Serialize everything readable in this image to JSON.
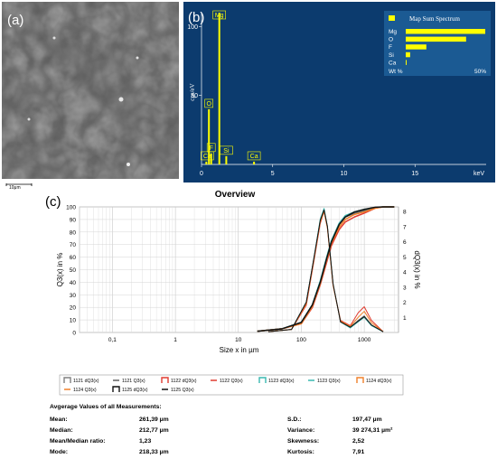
{
  "panels": {
    "a": {
      "label": "(a)",
      "scale_label": "10μm"
    },
    "b": {
      "label": "(b)"
    },
    "c": {
      "label": "(c)"
    }
  },
  "chart_data": [
    {
      "type": "bar",
      "panel": "b",
      "title": "",
      "ylabel": "cps/eV",
      "xlabel": "keV",
      "xlim": [
        0,
        20
      ],
      "ylim": [
        0,
        110
      ],
      "x_ticks": [
        "0",
        "5",
        "10",
        "15"
      ],
      "y_ticks": [
        "100",
        "50"
      ],
      "peaks": [
        {
          "label": "Ca",
          "x": 0.34,
          "y": 2
        },
        {
          "label": "F",
          "x": 0.68,
          "y": 8
        },
        {
          "label": "O",
          "x": 0.52,
          "y": 40
        },
        {
          "label": "Mg",
          "x": 1.25,
          "y": 110
        },
        {
          "label": "Si",
          "x": 1.74,
          "y": 6
        },
        {
          "label": "Ca",
          "x": 3.69,
          "y": 2
        }
      ],
      "inset": {
        "title": "Map Sum Spectrum",
        "categories": [
          "Mg",
          "O",
          "F",
          "Si",
          "Ca"
        ],
        "values": [
          54,
          41,
          14,
          3,
          0.5
        ],
        "x_label": "Wt %",
        "x_max_label": "50%"
      },
      "colors": {
        "background": "#0c3b6e",
        "bars": "#ffff00",
        "text": "#ffffff"
      }
    },
    {
      "type": "line",
      "panel": "c",
      "title": "Overview",
      "xlabel": "Size x in µm",
      "ylabel": "Q3(x) in %",
      "y2label": "dQ3(x) in %",
      "x_scale": "log",
      "xlim": [
        0.03,
        3500
      ],
      "ylim": [
        0,
        100
      ],
      "y2lim": [
        0,
        8.3
      ],
      "x_ticks": [
        "0,1",
        "1",
        "10",
        "100",
        "1000"
      ],
      "y_ticks": [
        "0",
        "10",
        "20",
        "30",
        "40",
        "50",
        "60",
        "70",
        "80",
        "90",
        "100"
      ],
      "y2_ticks": [
        "1",
        "2",
        "3",
        "4",
        "5",
        "6",
        "7",
        "8"
      ],
      "series": [
        {
          "name": "1121 dQ3(x)",
          "color": "#808080",
          "axis": "y2",
          "x": [
            30,
            70,
            120,
            160,
            200,
            230,
            260,
            320,
            420,
            600,
            800,
            1000,
            1300,
            2000
          ],
          "y": [
            0.05,
            0.2,
            2.0,
            5.0,
            7.4,
            8.1,
            7.0,
            3.2,
            0.7,
            0.35,
            0.8,
            1.1,
            0.5,
            0.05
          ]
        },
        {
          "name": "1121 Q3(x)",
          "color": "#606060",
          "axis": "y",
          "x": [
            20,
            50,
            100,
            150,
            200,
            250,
            300,
            400,
            500,
            700,
            1000,
            1500,
            2000,
            3000
          ],
          "y": [
            1,
            3,
            8,
            22,
            40,
            58,
            72,
            86,
            92,
            95,
            97,
            99.5,
            100,
            100
          ]
        },
        {
          "name": "1122 dQ3(x)",
          "color": "#e03c31",
          "axis": "y2",
          "x": [
            30,
            70,
            120,
            160,
            200,
            230,
            260,
            320,
            420,
            600,
            800,
            1000,
            1300,
            2000
          ],
          "y": [
            0.05,
            0.2,
            1.8,
            4.8,
            7.2,
            8.0,
            6.9,
            3.1,
            0.8,
            0.45,
            1.3,
            1.7,
            0.8,
            0.05
          ]
        },
        {
          "name": "1122 Q3(x)",
          "color": "#e03c31",
          "axis": "y",
          "x": [
            20,
            50,
            100,
            150,
            200,
            250,
            300,
            400,
            500,
            700,
            1000,
            1500,
            2000,
            3000
          ],
          "y": [
            1,
            3,
            7,
            20,
            38,
            55,
            69,
            82,
            88,
            92,
            95,
            99,
            100,
            100
          ]
        },
        {
          "name": "1123 dQ3(x)",
          "color": "#39b8b0",
          "axis": "y2",
          "x": [
            30,
            70,
            120,
            160,
            200,
            230,
            260,
            320,
            420,
            600,
            800,
            1000,
            1300,
            2000
          ],
          "y": [
            0.05,
            0.2,
            2.0,
            5.0,
            7.5,
            8.2,
            7.0,
            3.2,
            0.7,
            0.3,
            0.7,
            1.0,
            0.45,
            0.05
          ]
        },
        {
          "name": "1123 Q3(x)",
          "color": "#39b8b0",
          "axis": "y",
          "x": [
            20,
            50,
            100,
            150,
            200,
            250,
            300,
            400,
            500,
            700,
            1000,
            1500,
            2000,
            3000
          ],
          "y": [
            1,
            3,
            8,
            22,
            41,
            59,
            73,
            87,
            93,
            96,
            98,
            99.5,
            100,
            100
          ]
        },
        {
          "name": "1124 dQ3(x)",
          "color": "#f0802a",
          "axis": "y2",
          "x": [
            30,
            70,
            120,
            160,
            200,
            230,
            260,
            320,
            420,
            600,
            800,
            1000,
            1300,
            2000
          ],
          "y": [
            0.05,
            0.2,
            1.9,
            4.9,
            7.3,
            8.0,
            6.9,
            3.1,
            0.75,
            0.4,
            1.0,
            1.4,
            0.65,
            0.05
          ]
        },
        {
          "name": "1124 Q3(x)",
          "color": "#f0802a",
          "axis": "y",
          "x": [
            20,
            50,
            100,
            150,
            200,
            250,
            300,
            400,
            500,
            700,
            1000,
            1500,
            2000,
            3000
          ],
          "y": [
            1,
            3,
            7,
            21,
            39,
            57,
            71,
            84,
            90,
            94,
            96,
            99,
            100,
            100
          ]
        },
        {
          "name": "1125 dQ3(x)",
          "color": "#111111",
          "axis": "y2",
          "x": [
            30,
            70,
            120,
            160,
            200,
            230,
            260,
            320,
            420,
            600,
            800,
            1000,
            1300,
            2000
          ],
          "y": [
            0.05,
            0.2,
            2.0,
            5.0,
            7.4,
            8.1,
            7.0,
            3.2,
            0.7,
            0.35,
            0.75,
            1.05,
            0.5,
            0.05
          ]
        },
        {
          "name": "1125 Q3(x)",
          "color": "#111111",
          "axis": "y",
          "x": [
            20,
            50,
            100,
            150,
            200,
            250,
            300,
            400,
            500,
            700,
            1000,
            1500,
            2000,
            3000
          ],
          "y": [
            1,
            3,
            8,
            22,
            40,
            58,
            72,
            86,
            92,
            96,
            98,
            99.7,
            100,
            100
          ]
        }
      ]
    }
  ],
  "stats": {
    "heading": "Avgerage Values of all Measurements:",
    "left": [
      {
        "label": "Mean:",
        "value": "261,39 µm"
      },
      {
        "label": "Median:",
        "value": "212,77 µm"
      },
      {
        "label": "Mean/Median ratio:",
        "value": "1,23"
      },
      {
        "label": "Mode:",
        "value": "218,33 µm"
      }
    ],
    "right": [
      {
        "label": "S.D.:",
        "value": "197,47 µm"
      },
      {
        "label": "Variance:",
        "value": "39 274,31 µm²"
      },
      {
        "label": "Skewness:",
        "value": "2,52"
      },
      {
        "label": "Kurtosis:",
        "value": "7,91"
      }
    ]
  }
}
